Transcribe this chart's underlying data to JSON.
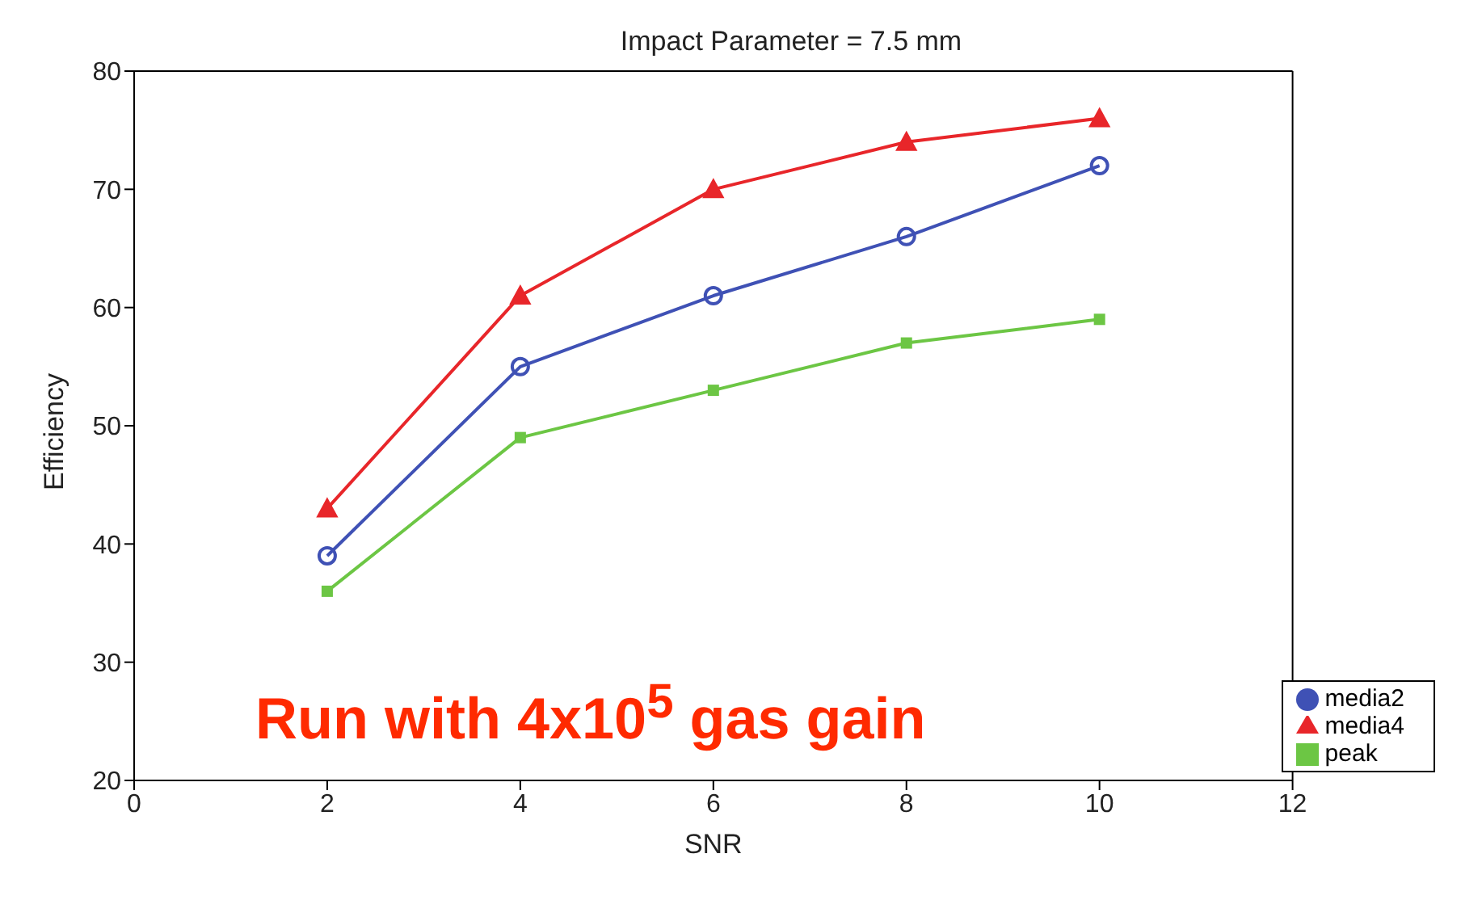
{
  "chart_data": {
    "type": "line",
    "title": "Impact Parameter = 7.5 mm",
    "xlabel": "SNR",
    "ylabel": "Efficiency",
    "x": [
      2,
      4,
      6,
      8,
      10
    ],
    "series": [
      {
        "name": "media2",
        "color": "#3f51b5",
        "values": [
          39,
          55,
          61,
          66,
          72
        ],
        "marker": "circle"
      },
      {
        "name": "media4",
        "color": "#e8262a",
        "values": [
          43,
          61,
          70,
          74,
          76
        ],
        "marker": "triangle"
      },
      {
        "name": "peak",
        "color": "#6cc644",
        "values": [
          36,
          49,
          53,
          57,
          59
        ],
        "marker": "square"
      }
    ],
    "xlim": [
      0,
      12
    ],
    "xticks": [
      0,
      2,
      4,
      6,
      8,
      10,
      12
    ],
    "ylim": [
      20,
      80
    ],
    "yticks": [
      20,
      30,
      40,
      50,
      60,
      70,
      80
    ],
    "grid": false,
    "legend": "bottom right",
    "line_style": "solid",
    "annotations": [
      "Run with 4x10$^{5}$ gas gain"
    ]
  }
}
